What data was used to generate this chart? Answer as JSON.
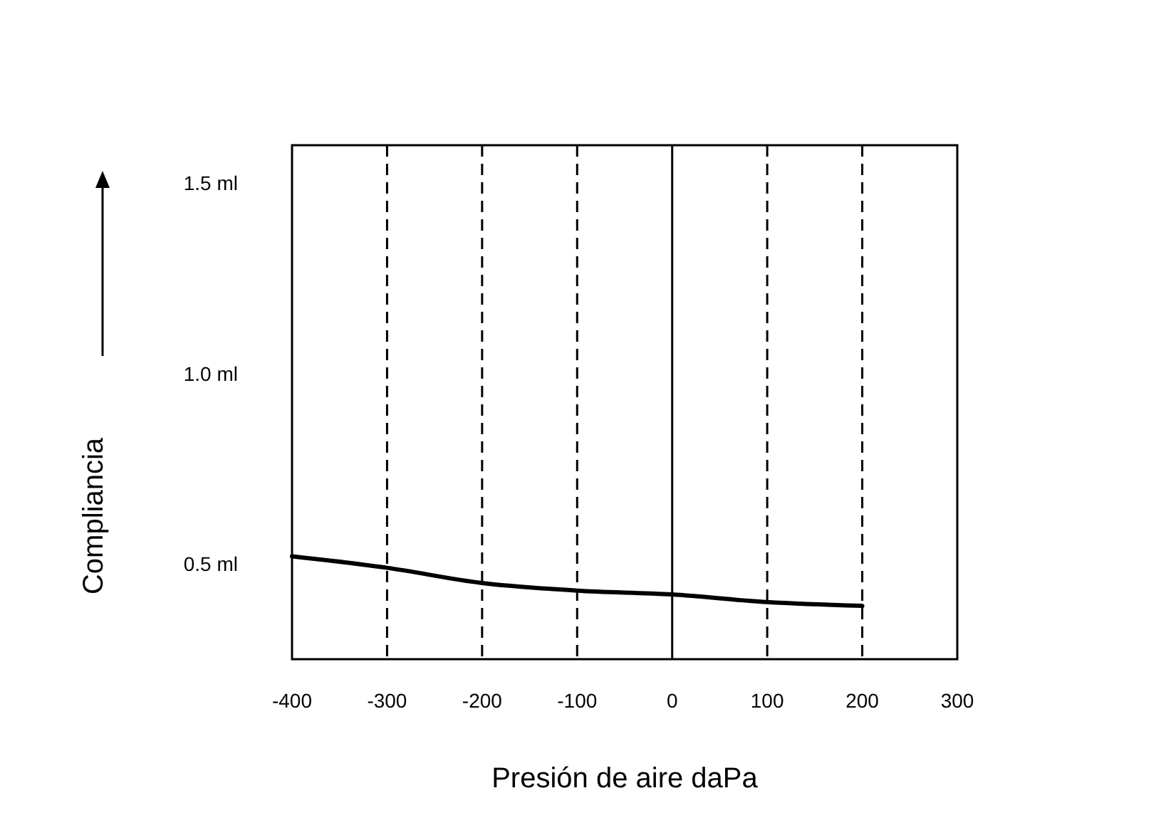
{
  "chart_data": {
    "type": "line",
    "xlabel": "Presión de aire daPa",
    "ylabel": "Compliancia",
    "x": [
      -400,
      -300,
      -200,
      -100,
      0,
      100,
      200
    ],
    "series": [
      {
        "color": "#000000",
        "values": [
          0.52,
          0.49,
          0.45,
          0.43,
          0.42,
          0.4,
          0.39
        ]
      }
    ],
    "xlim": [
      -400,
      300
    ],
    "xticks": [
      -400,
      -300,
      -200,
      -100,
      0,
      100,
      200,
      300
    ],
    "ylim": [
      0.25,
      1.6
    ],
    "yticks": [
      {
        "value": 0.5,
        "label": "0.5 ml"
      },
      {
        "value": 1.0,
        "label": "1.0 ml"
      },
      {
        "value": 1.5,
        "label": "1.5 ml"
      }
    ],
    "ref_lines": [
      {
        "axis": "x",
        "value": -300,
        "line_style": "dashed"
      },
      {
        "axis": "x",
        "value": -200,
        "line_style": "dashed"
      },
      {
        "axis": "x",
        "value": -100,
        "line_style": "dashed"
      },
      {
        "axis": "x",
        "value": 0,
        "line_style": "solid"
      },
      {
        "axis": "x",
        "value": 100,
        "line_style": "dashed"
      },
      {
        "axis": "x",
        "value": 200,
        "line_style": "dashed"
      }
    ],
    "grid": false,
    "marker": "none",
    "line_style": "solid"
  }
}
